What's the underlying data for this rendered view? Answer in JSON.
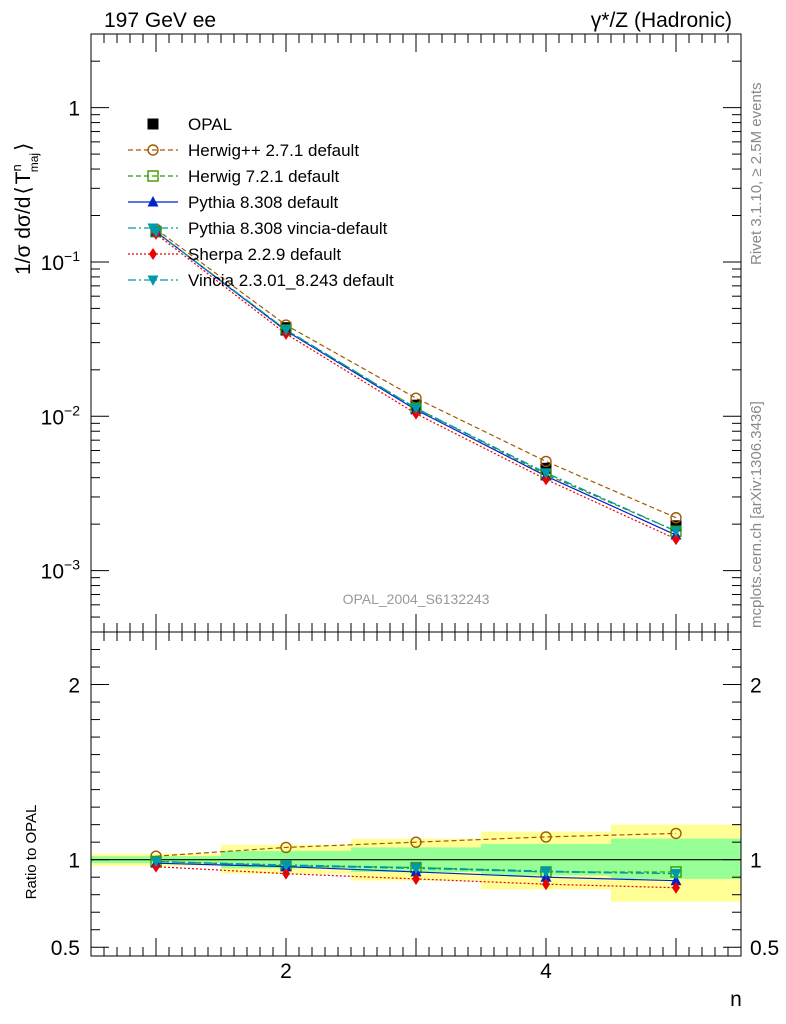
{
  "header": {
    "left": "197 GeV ee",
    "right": "γ*/Z (Hadronic)"
  },
  "side_text": {
    "rivet": "Rivet 3.1.10, ≥ 2.5M events",
    "mcplots": "mcplots.cern.ch [arXiv:1306.3436]"
  },
  "watermark": "OPAL_2004_S6132243",
  "top_y_label": {
    "prefix": "1/σ dσ/d",
    "lang": "⟨",
    "T": "T",
    "sup": "n",
    "sub": "maj",
    "rang": "⟩"
  },
  "chart_data": [
    {
      "panel": "main",
      "type": "line",
      "yscale": "log",
      "xlim": [
        0.5,
        5.5
      ],
      "ylim": [
        0.0004,
        3
      ],
      "x_ticks": [
        2,
        4
      ],
      "y_ticks": [
        {
          "value": 0.001,
          "base": "10",
          "exp": "−3"
        },
        {
          "value": 0.01,
          "base": "10",
          "exp": "−2"
        },
        {
          "value": 0.1,
          "base": "10",
          "exp": "−1"
        },
        {
          "value": 1,
          "base": "1",
          "exp": ""
        }
      ],
      "legend_position": "top-left",
      "x": [
        1,
        2,
        3,
        4,
        5
      ],
      "data": {
        "name": "OPAL",
        "color": "#000000",
        "values": [
          0.158,
          0.0375,
          0.0118,
          0.0046,
          0.00195
        ]
      },
      "series": [
        {
          "name": "Herwig++ 2.7.1 default",
          "color": "#a05a00",
          "dash": "5,3",
          "marker": "open-circle",
          "values": [
            0.163,
            0.039,
            0.0131,
            0.0051,
            0.0022
          ]
        },
        {
          "name": "Herwig 7.2.1 default",
          "color": "#3a9a00",
          "dash": "5,3",
          "marker": "open-square",
          "values": [
            0.157,
            0.0362,
            0.0113,
            0.0042,
            0.0018
          ]
        },
        {
          "name": "Pythia 8.308 default",
          "color": "#0022cc",
          "dash": "",
          "marker": "triangle-up",
          "values": [
            0.157,
            0.0358,
            0.011,
            0.0041,
            0.0017
          ]
        },
        {
          "name": "Pythia 8.308 vincia-default",
          "color": "#0099aa",
          "dash": "8,3,2,3",
          "marker": "triangle-down",
          "values": [
            0.157,
            0.0362,
            0.0112,
            0.0043,
            0.0018
          ]
        },
        {
          "name": "Sherpa 2.2.9 default",
          "color": "#ee0000",
          "dash": "2,2",
          "marker": "diamond",
          "values": [
            0.152,
            0.0342,
            0.0104,
            0.0039,
            0.0016
          ]
        },
        {
          "name": "Vincia 2.3.01_8.243 default",
          "color": "#0099aa",
          "dash": "8,3,2,3",
          "marker": "triangle-down",
          "values": [
            0.157,
            0.0364,
            0.0113,
            0.0043,
            0.0018
          ]
        }
      ]
    },
    {
      "panel": "ratio",
      "type": "line",
      "ylabel": "Ratio to OPAL",
      "xlabel": "n",
      "xlim": [
        0.5,
        5.5
      ],
      "ylim": [
        0.45,
        2.3
      ],
      "y_ticks": [
        {
          "value": 0.5,
          "label": "0.5"
        },
        {
          "value": 1,
          "label": "1"
        },
        {
          "value": 2,
          "label": "2"
        }
      ],
      "x_ticks": [
        2,
        4
      ],
      "bins": [
        {
          "lo": 0.5,
          "hi": 1.5,
          "stat": [
            0.98,
            1.02
          ],
          "total": [
            0.965,
            1.035
          ]
        },
        {
          "lo": 1.5,
          "hi": 2.5,
          "stat": [
            0.95,
            1.05
          ],
          "total": [
            0.92,
            1.085
          ]
        },
        {
          "lo": 2.5,
          "hi": 3.5,
          "stat": [
            0.93,
            1.07
          ],
          "total": [
            0.88,
            1.12
          ]
        },
        {
          "lo": 3.5,
          "hi": 4.5,
          "stat": [
            0.91,
            1.09
          ],
          "total": [
            0.83,
            1.16
          ]
        },
        {
          "lo": 4.5,
          "hi": 5.5,
          "stat": [
            0.89,
            1.12
          ],
          "total": [
            0.76,
            1.2
          ]
        }
      ],
      "stat_band_color": "#96ff96",
      "total_band_color": "#ffff96",
      "x": [
        1,
        2,
        3,
        4,
        5
      ],
      "series": [
        {
          "name": "Herwig++ 2.7.1 default",
          "values": [
            1.02,
            1.07,
            1.1,
            1.13,
            1.15
          ]
        },
        {
          "name": "Herwig 7.2.1 default",
          "values": [
            0.99,
            0.965,
            0.955,
            0.93,
            0.93
          ]
        },
        {
          "name": "Pythia 8.308 default",
          "values": [
            0.98,
            0.96,
            0.93,
            0.9,
            0.88
          ]
        },
        {
          "name": "Pythia 8.308 vincia-default",
          "values": [
            0.99,
            0.965,
            0.95,
            0.93,
            0.92
          ]
        },
        {
          "name": "Sherpa 2.2.9 default",
          "values": [
            0.96,
            0.92,
            0.89,
            0.86,
            0.84
          ]
        },
        {
          "name": "Vincia 2.3.01_8.243 default",
          "values": [
            0.99,
            0.97,
            0.955,
            0.935,
            0.92
          ]
        }
      ]
    }
  ]
}
